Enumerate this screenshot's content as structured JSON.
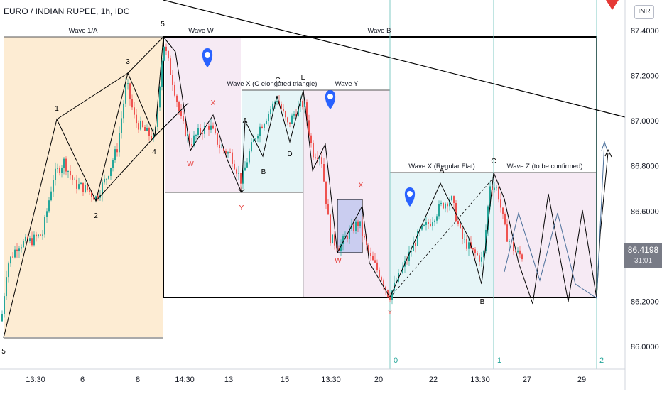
{
  "title": "EURO / INDIAN RUPEE, 1h, IDC",
  "currency": "INR",
  "last_price": "86.4198",
  "countdown": "31:01",
  "chart_data": {
    "type": "candlestick",
    "title": "EURO / INDIAN RUPEE, 1h, IDC",
    "y_axis": {
      "ticks": [
        "87.4000",
        "87.2000",
        "87.0000",
        "86.8000",
        "86.6000",
        "86.4000",
        "86.2000",
        "86.0000"
      ],
      "ylim": [
        85.92,
        87.47
      ],
      "unit": "INR",
      "position": "right"
    },
    "x_axis": {
      "ticks": [
        "13:30",
        "6",
        "8",
        "14:30",
        "13",
        "15",
        "13:30",
        "20",
        "22",
        "13:30",
        "27",
        "29"
      ]
    },
    "grid": false,
    "price_path": [
      [
        0,
        86.05
      ],
      [
        10,
        86.36
      ],
      [
        25,
        86.45
      ],
      [
        45,
        86.47
      ],
      [
        60,
        86.5
      ],
      [
        75,
        86.75
      ],
      [
        90,
        86.82
      ],
      [
        105,
        86.72
      ],
      [
        120,
        86.7
      ],
      [
        135,
        86.66
      ],
      [
        150,
        86.75
      ],
      [
        165,
        86.88
      ],
      [
        178,
        87.17
      ],
      [
        190,
        87.0
      ],
      [
        205,
        86.95
      ],
      [
        218,
        86.92
      ],
      [
        230,
        87.35
      ],
      [
        245,
        87.15
      ],
      [
        255,
        87.0
      ],
      [
        268,
        86.9
      ],
      [
        280,
        86.95
      ],
      [
        295,
        86.98
      ],
      [
        310,
        86.88
      ],
      [
        325,
        86.85
      ],
      [
        340,
        86.73
      ],
      [
        350,
        86.85
      ],
      [
        362,
        86.95
      ],
      [
        375,
        87.02
      ],
      [
        390,
        87.1
      ],
      [
        405,
        86.98
      ],
      [
        418,
        87.05
      ],
      [
        428,
        87.08
      ],
      [
        440,
        86.86
      ],
      [
        452,
        86.85
      ],
      [
        465,
        86.48
      ],
      [
        478,
        86.44
      ],
      [
        490,
        86.5
      ],
      [
        505,
        86.55
      ],
      [
        520,
        86.4
      ],
      [
        535,
        86.32
      ],
      [
        548,
        86.22
      ],
      [
        560,
        86.3
      ],
      [
        575,
        86.4
      ],
      [
        590,
        86.5
      ],
      [
        605,
        86.55
      ],
      [
        620,
        86.62
      ],
      [
        635,
        86.66
      ],
      [
        650,
        86.48
      ],
      [
        665,
        86.42
      ],
      [
        680,
        86.38
      ],
      [
        690,
        86.72
      ],
      [
        700,
        86.7
      ],
      [
        712,
        86.5
      ],
      [
        725,
        86.42
      ],
      [
        735,
        86.4
      ]
    ],
    "annotations": {
      "wave_labels": [
        "Wave 1/A",
        "Wave W",
        "Wave B",
        "Wave X (C elongated triangle)",
        "Wave Y",
        "Wave X (Regular Flat)",
        "Wave Z (to be confirmed)"
      ],
      "points": [
        {
          "text": "5",
          "color": "#000000"
        },
        {
          "text": "1",
          "color": "#000000"
        },
        {
          "text": "2",
          "color": "#000000"
        },
        {
          "text": "3",
          "color": "#000000"
        },
        {
          "text": "4",
          "color": "#000000"
        },
        {
          "text": "5",
          "color": "#000000"
        },
        {
          "text": "X",
          "color": "#e53935"
        },
        {
          "text": "W",
          "color": "#e53935"
        },
        {
          "text": "Y",
          "color": "#e53935"
        },
        {
          "text": "A",
          "color": "#000000"
        },
        {
          "text": "B",
          "color": "#000000"
        },
        {
          "text": "C",
          "color": "#000000"
        },
        {
          "text": "D",
          "color": "#000000"
        },
        {
          "text": "E",
          "color": "#000000"
        },
        {
          "text": "X",
          "color": "#e53935"
        },
        {
          "text": "W",
          "color": "#e53935"
        },
        {
          "text": "Y",
          "color": "#e53935"
        },
        {
          "text": "A",
          "color": "#000000"
        },
        {
          "text": "B",
          "color": "#000000"
        },
        {
          "text": "C",
          "color": "#000000"
        }
      ],
      "cycle_markers": [
        "0",
        "1",
        "2"
      ]
    },
    "colors": {
      "up": "#26a69a",
      "down": "#ef5350",
      "marker": "#2962ff",
      "cycle_line": "#80cbc4"
    }
  }
}
